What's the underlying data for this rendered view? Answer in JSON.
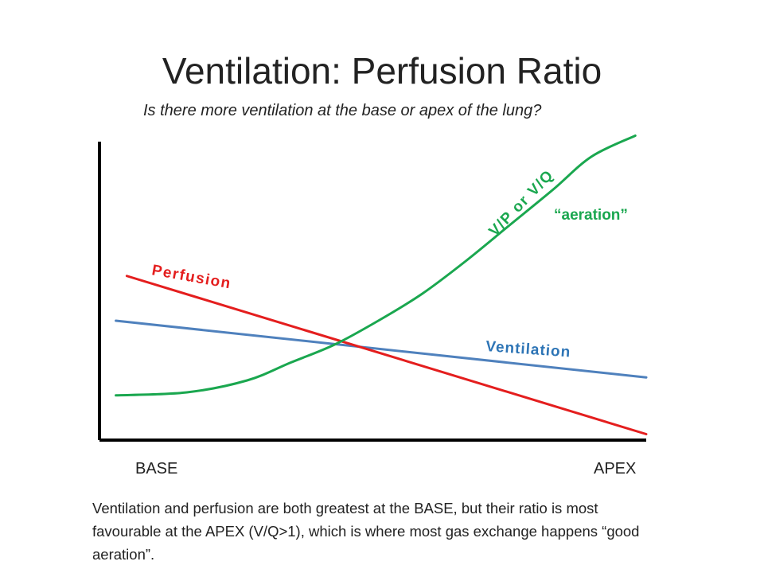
{
  "title": "Ventilation: Perfusion Ratio",
  "subtitle": "Is there more ventilation at the base or apex of the lung?",
  "caption": "Ventilation and perfusion are both greatest at the BASE, but their ratio is most favourable at the APEX (V/Q>1),  which is where most gas exchange happens “good aeration”.",
  "colors": {
    "perfusion": "#e41e1e",
    "ventilation": "#4f81bd",
    "vq": "#1aa74f",
    "axis": "#000000",
    "text": "#222222"
  },
  "chart_data": {
    "type": "line",
    "x_tick_labels": [
      "BASE",
      "APEX"
    ],
    "xlim": [
      0,
      1
    ],
    "ylim": [
      0,
      1
    ],
    "axis_numbers_shown": false,
    "grid": false,
    "series": [
      {
        "name": "Perfusion",
        "key": "perfusion",
        "x": [
          0.05,
          1.0
        ],
        "y": [
          0.55,
          0.02
        ]
      },
      {
        "name": "Ventilation",
        "key": "ventilation",
        "x": [
          0.03,
          1.0
        ],
        "y": [
          0.4,
          0.21
        ]
      },
      {
        "name": "V/P or V/Q",
        "key": "vq",
        "x": [
          0.03,
          0.16,
          0.27,
          0.35,
          0.43,
          0.51,
          0.59,
          0.67,
          0.75,
          0.83,
          0.9,
          0.98
        ],
        "y": [
          0.15,
          0.16,
          0.2,
          0.26,
          0.32,
          0.4,
          0.49,
          0.6,
          0.72,
          0.84,
          0.95,
          1.02
        ]
      }
    ],
    "annotations": [
      "“aeration”"
    ]
  }
}
